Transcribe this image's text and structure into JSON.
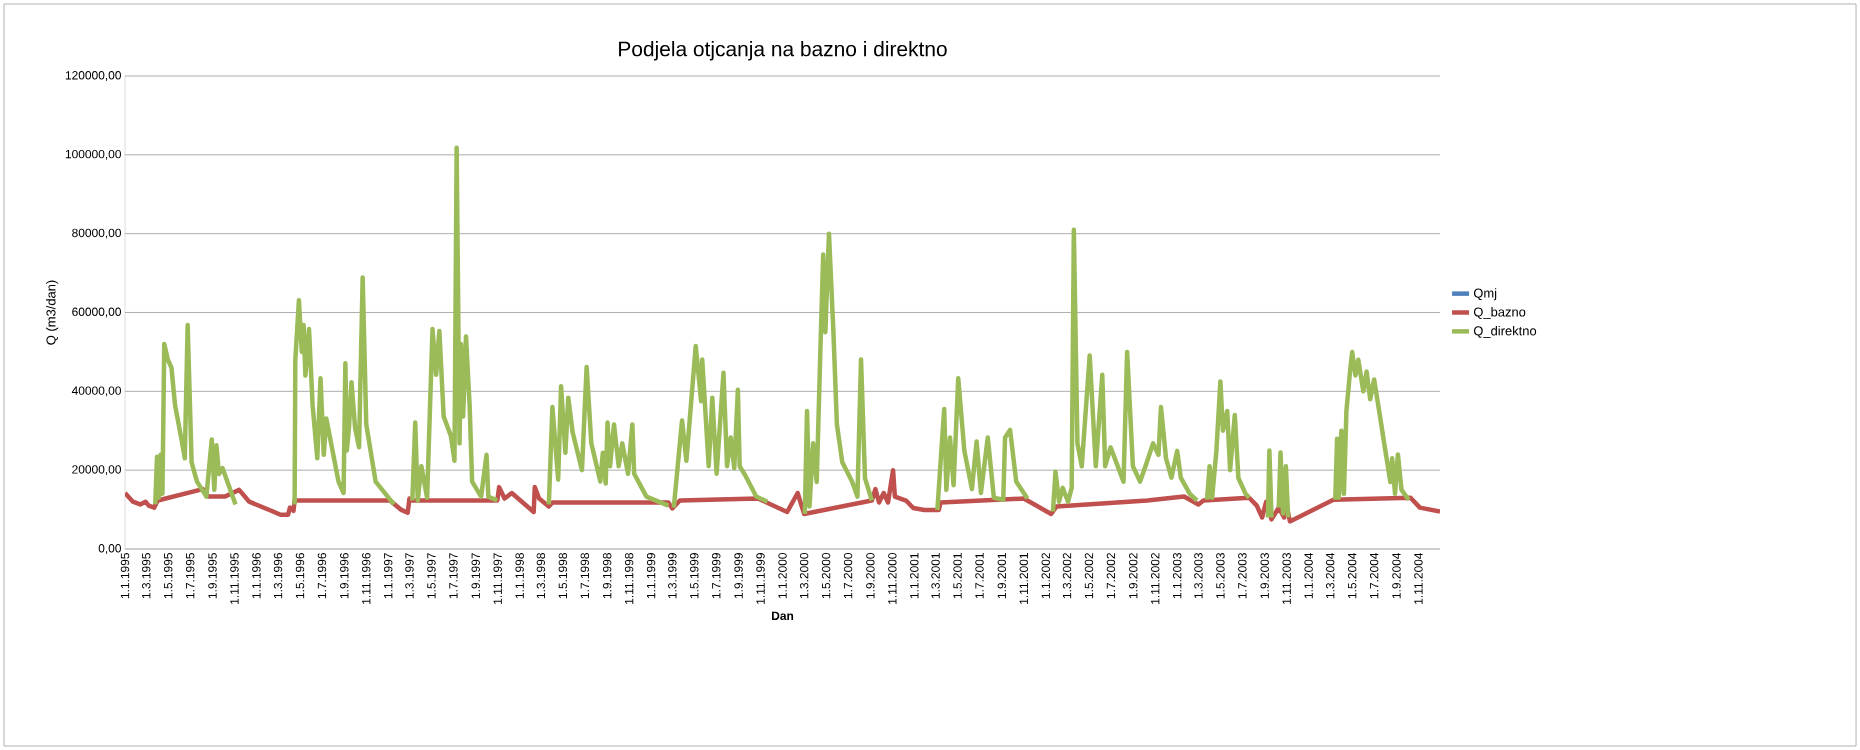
{
  "chart_data": {
    "type": "line",
    "title": "Podjela otjcanja na bazno i direktno",
    "xlabel": "Dan",
    "ylabel": "Q (m3/dan)",
    "grid": "y",
    "legend": "right",
    "xlim": [
      "1995-01-01",
      "2004-12-31"
    ],
    "ylim": [
      0,
      120000
    ],
    "yticks": [
      {
        "value": 0,
        "label": "0,00"
      },
      {
        "value": 20000,
        "label": "20000,00"
      },
      {
        "value": 40000,
        "label": "40000,00"
      },
      {
        "value": 60000,
        "label": "60000,00"
      },
      {
        "value": 80000,
        "label": "80000,00"
      },
      {
        "value": 100000,
        "label": "100000,00"
      },
      {
        "value": 120000,
        "label": "120000,00"
      }
    ],
    "xticks": [
      {
        "value": "1995-01-01",
        "label": "1.1.1995"
      },
      {
        "value": "1995-03-01",
        "label": "1.3.1995"
      },
      {
        "value": "1995-05-01",
        "label": "1.5.1995"
      },
      {
        "value": "1995-07-01",
        "label": "1.7.1995"
      },
      {
        "value": "1995-09-01",
        "label": "1.9.1995"
      },
      {
        "value": "1995-11-01",
        "label": "1.11.1995"
      },
      {
        "value": "1996-01-01",
        "label": "1.1.1996"
      },
      {
        "value": "1996-03-01",
        "label": "1.3.1996"
      },
      {
        "value": "1996-05-01",
        "label": "1.5.1996"
      },
      {
        "value": "1996-07-01",
        "label": "1.7.1996"
      },
      {
        "value": "1996-09-01",
        "label": "1.9.1996"
      },
      {
        "value": "1996-11-01",
        "label": "1.11.1996"
      },
      {
        "value": "1997-01-01",
        "label": "1.1.1997"
      },
      {
        "value": "1997-03-01",
        "label": "1.3.1997"
      },
      {
        "value": "1997-05-01",
        "label": "1.5.1997"
      },
      {
        "value": "1997-07-01",
        "label": "1.7.1997"
      },
      {
        "value": "1997-09-01",
        "label": "1.9.1997"
      },
      {
        "value": "1997-11-01",
        "label": "1.11.1997"
      },
      {
        "value": "1998-01-01",
        "label": "1.1.1998"
      },
      {
        "value": "1998-03-01",
        "label": "1.3.1998"
      },
      {
        "value": "1998-05-01",
        "label": "1.5.1998"
      },
      {
        "value": "1998-07-01",
        "label": "1.7.1998"
      },
      {
        "value": "1998-09-01",
        "label": "1.9.1998"
      },
      {
        "value": "1998-11-01",
        "label": "1.11.1998"
      },
      {
        "value": "1999-01-01",
        "label": "1.1.1999"
      },
      {
        "value": "1999-03-01",
        "label": "1.3.1999"
      },
      {
        "value": "1999-05-01",
        "label": "1.5.1999"
      },
      {
        "value": "1999-07-01",
        "label": "1.7.1999"
      },
      {
        "value": "1999-09-01",
        "label": "1.9.1999"
      },
      {
        "value": "1999-11-01",
        "label": "1.11.1999"
      },
      {
        "value": "2000-01-01",
        "label": "1.1.2000"
      },
      {
        "value": "2000-03-01",
        "label": "1.3.2000"
      },
      {
        "value": "2000-05-01",
        "label": "1.5.2000"
      },
      {
        "value": "2000-07-01",
        "label": "1.7.2000"
      },
      {
        "value": "2000-09-01",
        "label": "1.9.2000"
      },
      {
        "value": "2000-11-01",
        "label": "1.11.2000"
      },
      {
        "value": "2001-01-01",
        "label": "1.1.2001"
      },
      {
        "value": "2001-03-01",
        "label": "1.3.2001"
      },
      {
        "value": "2001-05-01",
        "label": "1.5.2001"
      },
      {
        "value": "2001-07-01",
        "label": "1.7.2001"
      },
      {
        "value": "2001-09-01",
        "label": "1.9.2001"
      },
      {
        "value": "2001-11-01",
        "label": "1.11.2001"
      },
      {
        "value": "2002-01-01",
        "label": "1.1.2002"
      },
      {
        "value": "2002-03-01",
        "label": "1.3.2002"
      },
      {
        "value": "2002-05-01",
        "label": "1.5.2002"
      },
      {
        "value": "2002-07-01",
        "label": "1.7.2002"
      },
      {
        "value": "2002-09-01",
        "label": "1.9.2002"
      },
      {
        "value": "2002-11-01",
        "label": "1.11.2002"
      },
      {
        "value": "2003-01-01",
        "label": "1.1.2003"
      },
      {
        "value": "2003-03-01",
        "label": "1.3.2003"
      },
      {
        "value": "2003-05-01",
        "label": "1.5.2003"
      },
      {
        "value": "2003-07-01",
        "label": "1.7.2003"
      },
      {
        "value": "2003-09-01",
        "label": "1.9.2003"
      },
      {
        "value": "2003-11-01",
        "label": "1.11.2003"
      },
      {
        "value": "2004-01-01",
        "label": "1.1.2004"
      },
      {
        "value": "2004-03-01",
        "label": "1.3.2004"
      },
      {
        "value": "2004-05-01",
        "label": "1.5.2004"
      },
      {
        "value": "2004-07-01",
        "label": "1.7.2004"
      },
      {
        "value": "2004-09-01",
        "label": "1.9.2004"
      },
      {
        "value": "2004-11-01",
        "label": "1.11.2004"
      }
    ],
    "series": [
      {
        "name": "Qmj",
        "color": "#4f81bd"
      },
      {
        "name": "Q_bazno",
        "color": "#c0504d",
        "x": [
          "1995-01-01",
          "1995-01-23",
          "1995-02-12",
          "1995-02-27",
          "1995-03-08",
          "1995-03-23",
          "1995-04-02",
          "1995-08-05",
          "1995-08-21",
          "1995-10-06",
          "1995-11-14",
          "1995-12-12",
          "1996-02-06",
          "1996-03-08",
          "1996-03-29",
          "1996-04-03",
          "1996-04-13",
          "1996-04-16",
          "1997-01-06",
          "1997-02-05",
          "1997-02-24",
          "1997-03-01",
          "1997-03-08",
          "1997-10-31",
          "1997-11-05",
          "1997-11-20",
          "1997-12-10",
          "1998-02-09",
          "1998-02-12",
          "1998-02-24",
          "1998-03-23",
          "1998-04-02",
          "1999-02-18",
          "1999-03-01",
          "1999-03-22",
          "1999-10-25",
          "2000-01-14",
          "2000-02-12",
          "2000-03-01",
          "2000-09-05",
          "2000-09-15",
          "2000-09-25",
          "2000-10-08",
          "2000-10-20",
          "2000-11-03",
          "2000-11-08",
          "2000-12-09",
          "2000-12-29",
          "2001-01-29",
          "2001-03-10",
          "2001-03-15",
          "2001-11-01",
          "2002-01-16",
          "2002-01-31",
          "2002-10-10",
          "2003-01-20",
          "2003-03-01",
          "2003-03-15",
          "2003-07-20",
          "2003-08-10",
          "2003-08-25",
          "2003-09-05",
          "2003-09-20",
          "2003-10-10",
          "2003-10-25",
          "2003-11-01",
          "2003-11-10",
          "2004-03-10",
          "2004-10-10",
          "2004-11-05",
          "2004-12-31"
        ],
        "values": [
          14200,
          12000,
          11300,
          12000,
          11000,
          10500,
          12300,
          15200,
          13300,
          13300,
          15000,
          12000,
          9900,
          8700,
          8700,
          10500,
          9700,
          12300,
          12300,
          10000,
          9200,
          12800,
          12300,
          12300,
          15700,
          12800,
          14200,
          9400,
          15700,
          12800,
          10800,
          11800,
          11800,
          10300,
          12300,
          12800,
          9400,
          14200,
          8900,
          12300,
          15200,
          11800,
          14200,
          11800,
          20000,
          13300,
          12300,
          10400,
          9900,
          9900,
          11800,
          12800,
          8900,
          10800,
          12300,
          13300,
          11300,
          12300,
          13000,
          11000,
          8000,
          12000,
          7500,
          10500,
          8000,
          11000,
          7000,
          12500,
          13000,
          10500,
          9500
        ]
      },
      {
        "name": "Q_direktno",
        "color": "#9bbb59",
        "x": [
          "1995-03-26",
          "1995-03-31",
          "1995-04-05",
          "1995-04-10",
          "1995-04-15",
          "1995-04-20",
          "1995-04-30",
          "1995-05-10",
          "1995-05-20",
          "1995-06-09",
          "1995-06-16",
          "1995-06-24",
          "1995-07-05",
          "1995-07-20",
          "1995-08-15",
          "1995-08-30",
          "1995-09-06",
          "1995-09-12",
          "1995-09-19",
          "1995-09-29",
          "1995-11-04",
          "1996-01-01",
          "1996-04-16",
          "1996-04-18",
          "1996-04-28",
          "1996-05-06",
          "1996-05-11",
          "1996-05-16",
          "1996-05-26",
          "1996-06-05",
          "1996-06-18",
          "1996-06-27",
          "1996-07-06",
          "1996-07-13",
          "1996-08-16",
          "1996-08-30",
          "1996-09-04",
          "1996-09-08",
          "1996-09-14",
          "1996-09-21",
          "1996-10-01",
          "1996-10-12",
          "1996-10-22",
          "1996-11-01",
          "1996-11-27",
          "1997-01-17",
          "1997-02-01",
          "1997-03-09",
          "1997-03-17",
          "1997-03-24",
          "1997-04-03",
          "1997-04-19",
          "1997-05-04",
          "1997-05-14",
          "1997-05-23",
          "1997-06-04",
          "1997-06-24",
          "1997-07-04",
          "1997-07-10",
          "1997-07-18",
          "1997-07-22",
          "1997-07-28",
          "1997-08-05",
          "1997-08-15",
          "1997-08-22",
          "1997-09-16",
          "1997-10-01",
          "1997-10-06",
          "1997-10-31",
          "1998-01-01",
          "1998-03-23",
          "1998-04-02",
          "1998-04-18",
          "1998-04-26",
          "1998-05-08",
          "1998-05-16",
          "1998-05-28",
          "1998-06-23",
          "1998-07-06",
          "1998-07-19",
          "1998-08-13",
          "1998-08-20",
          "1998-08-28",
          "1998-09-02",
          "1998-09-09",
          "1998-09-20",
          "1998-10-03",
          "1998-10-13",
          "1998-10-29",
          "1998-11-10",
          "1998-11-15",
          "1998-12-19",
          "1999-02-18",
          "1999-03-02",
          "1999-03-05",
          "1999-03-28",
          "1999-04-09",
          "1999-05-05",
          "1999-05-20",
          "1999-05-23",
          "1999-06-10",
          "1999-06-20",
          "1999-07-02",
          "1999-07-21",
          "1999-07-31",
          "1999-08-10",
          "1999-08-20",
          "1999-08-30",
          "1999-09-04",
          "1999-09-20",
          "1999-10-20",
          "1999-11-20",
          "2000-01-01",
          "2000-03-03",
          "2000-03-09",
          "2000-03-16",
          "2000-03-26",
          "2000-04-05",
          "2000-04-15",
          "2000-04-23",
          "2000-04-29",
          "2000-05-09",
          "2000-05-21",
          "2000-05-31",
          "2000-06-15",
          "2000-07-12",
          "2000-07-27",
          "2000-08-06",
          "2000-08-17",
          "2000-09-05",
          "2001-01-01",
          "2001-03-06",
          "2001-03-25",
          "2001-03-31",
          "2001-04-10",
          "2001-04-20",
          "2001-05-03",
          "2001-05-20",
          "2001-06-10",
          "2001-06-23",
          "2001-07-05",
          "2001-07-24",
          "2001-08-10",
          "2001-09-05",
          "2001-09-10",
          "2001-09-24",
          "2001-10-11",
          "2001-11-11",
          "2001-12-15",
          "2002-01-21",
          "2002-01-28",
          "2002-02-07",
          "2002-02-17",
          "2002-03-04",
          "2002-03-14",
          "2002-03-20",
          "2002-03-30",
          "2002-04-11",
          "2002-04-24",
          "2002-05-03",
          "2002-05-20",
          "2002-06-07",
          "2002-06-15",
          "2002-06-30",
          "2002-08-05",
          "2002-08-15",
          "2002-08-31",
          "2002-09-20",
          "2002-10-05",
          "2002-10-26",
          "2002-11-10",
          "2002-11-17",
          "2002-12-01",
          "2002-12-16",
          "2003-01-01",
          "2003-01-11",
          "2003-02-05",
          "2003-02-25",
          "2003-03-10",
          "2003-03-25",
          "2003-04-01",
          "2003-04-08",
          "2003-04-20",
          "2003-05-01",
          "2003-05-08",
          "2003-05-20",
          "2003-05-28",
          "2003-06-10",
          "2003-06-20",
          "2003-07-10",
          "2003-07-20",
          "2003-08-20",
          "2003-09-10",
          "2003-09-14",
          "2003-09-20",
          "2003-10-01",
          "2003-10-10",
          "2003-10-15",
          "2003-10-22",
          "2003-10-30",
          "2003-11-05",
          "2004-01-01",
          "2004-03-15",
          "2004-03-20",
          "2004-03-25",
          "2004-04-01",
          "2004-04-08",
          "2004-04-15",
          "2004-04-25",
          "2004-05-01",
          "2004-05-10",
          "2004-05-18",
          "2004-06-01",
          "2004-06-10",
          "2004-06-20",
          "2004-07-01",
          "2004-07-15",
          "2004-08-01",
          "2004-08-15",
          "2004-08-20",
          "2004-08-28",
          "2004-09-05",
          "2004-09-15",
          "2004-10-05"
        ],
        "values": [
          11300,
          23400,
          13000,
          23900,
          14000,
          52000,
          48000,
          46000,
          36500,
          26800,
          23000,
          56800,
          22000,
          17100,
          13300,
          27800,
          15000,
          26300,
          19000,
          20500,
          11300,
          null,
          11300,
          48000,
          63100,
          50000,
          56800,
          44000,
          55800,
          36500,
          23000,
          43300,
          23900,
          33100,
          17100,
          14200,
          47100,
          25000,
          30700,
          42300,
          30700,
          25800,
          68900,
          31600,
          17100,
          11300,
          null,
          12300,
          32100,
          12300,
          21000,
          13000,
          55800,
          44200,
          55300,
          33600,
          28700,
          22400,
          101800,
          26800,
          52000,
          33600,
          53900,
          36500,
          17100,
          13300,
          23900,
          13300,
          12300,
          null,
          11300,
          36000,
          17600,
          41300,
          24400,
          38400,
          29700,
          20000,
          46200,
          26800,
          17100,
          24400,
          16600,
          32100,
          21000,
          31600,
          21000,
          26800,
          19100,
          31600,
          19100,
          13300,
          11000,
          null,
          10500,
          32600,
          22400,
          51500,
          37500,
          48100,
          21000,
          38400,
          19100,
          44700,
          21000,
          28300,
          20500,
          40400,
          21000,
          18600,
          13300,
          12000,
          null,
          8900,
          35000,
          10800,
          26800,
          17000,
          50000,
          74700,
          55000,
          80000,
          55800,
          31600,
          22000,
          17100,
          13300,
          48100,
          18000,
          12300,
          null,
          9900,
          35500,
          15000,
          28300,
          16200,
          43300,
          24900,
          15200,
          27300,
          14200,
          28300,
          13000,
          12500,
          28300,
          30200,
          17100,
          12800,
          null,
          9500,
          19600,
          12000,
          15500,
          12000,
          15500,
          81000,
          26800,
          21000,
          37500,
          49100,
          21000,
          44200,
          21000,
          25800,
          17100,
          50000,
          21000,
          17100,
          21000,
          26800,
          23900,
          36000,
          23000,
          18100,
          24900,
          18100,
          14000,
          12300,
          null,
          12500,
          21000,
          13000,
          25000,
          42500,
          30000,
          35000,
          20000,
          34000,
          18000,
          14000,
          13000,
          null,
          8000,
          25000,
          8000,
          null,
          10500,
          24500,
          9000,
          21000,
          8000,
          null,
          12500,
          28000,
          13000,
          30000,
          14000,
          35000,
          45000,
          50000,
          44000,
          48000,
          40000,
          45000,
          38000,
          43000,
          35000,
          25000,
          17000,
          23000,
          14000,
          24000,
          15000,
          12500
        ]
      }
    ]
  }
}
